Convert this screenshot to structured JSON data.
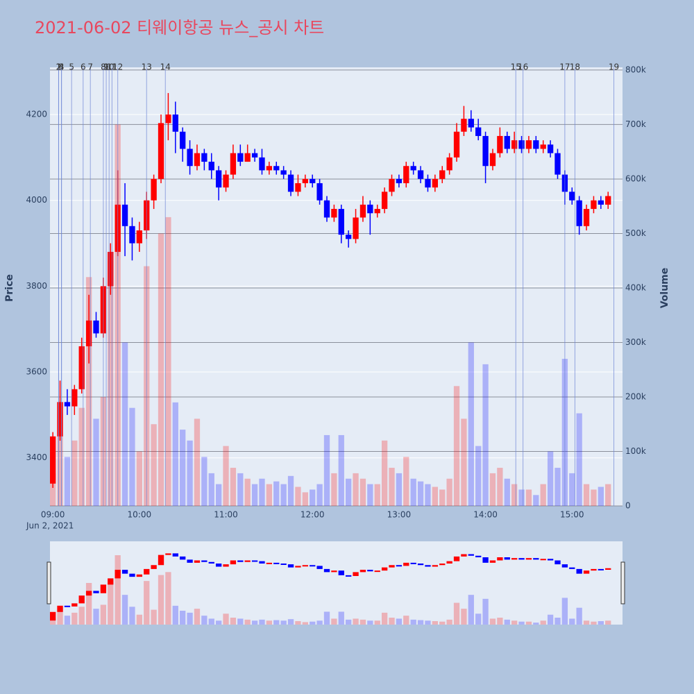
{
  "chart_data": {
    "type": "candlestick",
    "title": "2021-06-02 티웨이항공 뉴스_공시 차트",
    "y_label": "Price",
    "y2_label": "Volume",
    "x_sublabel": "Jun 2, 2021",
    "increasing_color": "#ff0000",
    "decreasing_color": "#0000ff",
    "x": [
      "09:00",
      "09:05",
      "09:10",
      "09:15",
      "09:20",
      "09:25",
      "09:30",
      "09:35",
      "09:40",
      "09:45",
      "09:50",
      "09:55",
      "10:00",
      "10:05",
      "10:10",
      "10:15",
      "10:20",
      "10:25",
      "10:30",
      "10:35",
      "10:40",
      "10:45",
      "10:50",
      "10:55",
      "11:00",
      "11:05",
      "11:10",
      "11:15",
      "11:20",
      "11:25",
      "11:30",
      "11:35",
      "11:40",
      "11:45",
      "11:50",
      "11:55",
      "12:00",
      "12:05",
      "12:10",
      "12:15",
      "12:20",
      "12:25",
      "12:30",
      "12:35",
      "12:40",
      "12:45",
      "12:50",
      "12:55",
      "13:00",
      "13:05",
      "13:10",
      "13:15",
      "13:20",
      "13:25",
      "13:30",
      "13:35",
      "13:40",
      "13:45",
      "13:50",
      "13:55",
      "14:00",
      "14:05",
      "14:10",
      "14:15",
      "14:20",
      "14:25",
      "14:30",
      "14:35",
      "14:40",
      "14:45",
      "14:50",
      "14:55",
      "15:00",
      "15:05",
      "15:10",
      "15:15",
      "15:20",
      "15:25"
    ],
    "open": [
      3340,
      3450,
      3530,
      3520,
      3560,
      3660,
      3720,
      3690,
      3800,
      3880,
      3990,
      3940,
      3900,
      3930,
      4000,
      4050,
      4180,
      4200,
      4160,
      4120,
      4080,
      4110,
      4090,
      4070,
      4030,
      4060,
      4110,
      4090,
      4110,
      4100,
      4070,
      4080,
      4070,
      4060,
      4020,
      4040,
      4050,
      4040,
      4000,
      3960,
      3980,
      3920,
      3910,
      3960,
      3990,
      3970,
      3980,
      4020,
      4050,
      4040,
      4080,
      4070,
      4050,
      4030,
      4050,
      4070,
      4100,
      4160,
      4190,
      4170,
      4150,
      4080,
      4110,
      4150,
      4120,
      4140,
      4120,
      4140,
      4120,
      4130,
      4110,
      4060,
      4020,
      4000,
      3940,
      3980,
      4000,
      3990
    ],
    "high": [
      3460,
      3580,
      3560,
      3570,
      3680,
      3780,
      3740,
      3820,
      3900,
      4070,
      4040,
      3960,
      3950,
      4020,
      4060,
      4200,
      4250,
      4230,
      4170,
      4140,
      4130,
      4120,
      4110,
      4080,
      4070,
      4130,
      4130,
      4130,
      4120,
      4120,
      4090,
      4090,
      4080,
      4070,
      4060,
      4060,
      4060,
      4050,
      4010,
      3990,
      3990,
      3930,
      3980,
      4010,
      4000,
      3990,
      4030,
      4060,
      4060,
      4090,
      4090,
      4080,
      4060,
      4060,
      4080,
      4110,
      4180,
      4220,
      4210,
      4190,
      4160,
      4120,
      4170,
      4160,
      4160,
      4150,
      4150,
      4150,
      4140,
      4140,
      4120,
      4070,
      4030,
      4010,
      3990,
      4010,
      4010,
      4020
    ],
    "low": [
      3330,
      3440,
      3500,
      3500,
      3550,
      3620,
      3680,
      3680,
      3780,
      3870,
      3870,
      3860,
      3880,
      3910,
      3980,
      4040,
      4140,
      4110,
      4090,
      4060,
      4070,
      4070,
      4050,
      4000,
      4020,
      4050,
      4080,
      4090,
      4090,
      4060,
      4060,
      4060,
      4050,
      4010,
      4010,
      4030,
      4030,
      3990,
      3950,
      3950,
      3900,
      3890,
      3900,
      3950,
      3920,
      3960,
      3970,
      4010,
      4030,
      4030,
      4060,
      4040,
      4020,
      4020,
      4040,
      4060,
      4090,
      4150,
      4160,
      4140,
      4040,
      4070,
      4100,
      4110,
      4110,
      4110,
      4110,
      4110,
      4110,
      4100,
      4050,
      3990,
      3990,
      3920,
      3930,
      3970,
      3980,
      3980
    ],
    "close": [
      3450,
      3530,
      3520,
      3560,
      3660,
      3720,
      3690,
      3800,
      3880,
      3990,
      3940,
      3900,
      3930,
      4000,
      4050,
      4180,
      4200,
      4160,
      4120,
      4080,
      4110,
      4090,
      4070,
      4030,
      4060,
      4110,
      4090,
      4110,
      4100,
      4070,
      4080,
      4070,
      4060,
      4020,
      4040,
      4050,
      4040,
      4000,
      3960,
      3980,
      3920,
      3910,
      3960,
      3990,
      3970,
      3980,
      4020,
      4050,
      4040,
      4080,
      4070,
      4050,
      4030,
      4050,
      4070,
      4100,
      4160,
      4190,
      4170,
      4150,
      4080,
      4110,
      4150,
      4120,
      4140,
      4120,
      4140,
      4120,
      4130,
      4110,
      4060,
      4020,
      4000,
      3940,
      3980,
      4000,
      3990,
      4010
    ],
    "volume": [
      60000,
      170000,
      90000,
      120000,
      180000,
      420000,
      160000,
      200000,
      450000,
      700000,
      300000,
      180000,
      100000,
      440000,
      150000,
      500000,
      530000,
      190000,
      140000,
      120000,
      160000,
      90000,
      60000,
      40000,
      110000,
      70000,
      60000,
      50000,
      40000,
      50000,
      40000,
      45000,
      40000,
      55000,
      35000,
      25000,
      30000,
      40000,
      130000,
      60000,
      130000,
      50000,
      60000,
      50000,
      40000,
      40000,
      120000,
      70000,
      60000,
      90000,
      50000,
      45000,
      40000,
      35000,
      30000,
      50000,
      220000,
      160000,
      300000,
      110000,
      260000,
      60000,
      70000,
      50000,
      40000,
      30000,
      30000,
      20000,
      40000,
      100000,
      70000,
      270000,
      60000,
      170000,
      40000,
      30000,
      35000,
      40000
    ],
    "xlim": [
      "08:58",
      "15:35"
    ],
    "xticks": [
      "09:00",
      "10:00",
      "11:00",
      "12:00",
      "13:00",
      "14:00",
      "15:00"
    ],
    "ylim": [
      3288,
      4310
    ],
    "yticks": [
      3400,
      3600,
      3800,
      4000,
      4200
    ],
    "y2lim": [
      0,
      805000
    ],
    "y2ticks": [
      0,
      {
        "value": 100000,
        "label": "100k"
      },
      {
        "value": 200000,
        "label": "200k"
      },
      {
        "value": 300000,
        "label": "300k"
      },
      {
        "value": 400000,
        "label": "400k"
      },
      {
        "value": 500000,
        "label": "500k"
      },
      {
        "value": 600000,
        "label": "600k"
      },
      {
        "value": 700000,
        "label": "700k"
      },
      {
        "value": 800000,
        "label": "800k"
      }
    ],
    "events": {
      "labels": [
        "1",
        "2",
        "3",
        "4",
        "5",
        "6",
        "7",
        "8",
        "9",
        "10",
        "11",
        "12",
        "13",
        "14",
        "15",
        "16",
        "17",
        "18",
        "19"
      ],
      "x": [
        "09:04",
        "09:04",
        "09:06",
        "09:06",
        "09:13",
        "09:21",
        "09:26",
        "09:35",
        "09:37",
        "09:39",
        "09:41",
        "09:45",
        "10:05",
        "10:18",
        "14:21",
        "14:26",
        "14:55",
        "15:02",
        "15:29"
      ]
    }
  }
}
